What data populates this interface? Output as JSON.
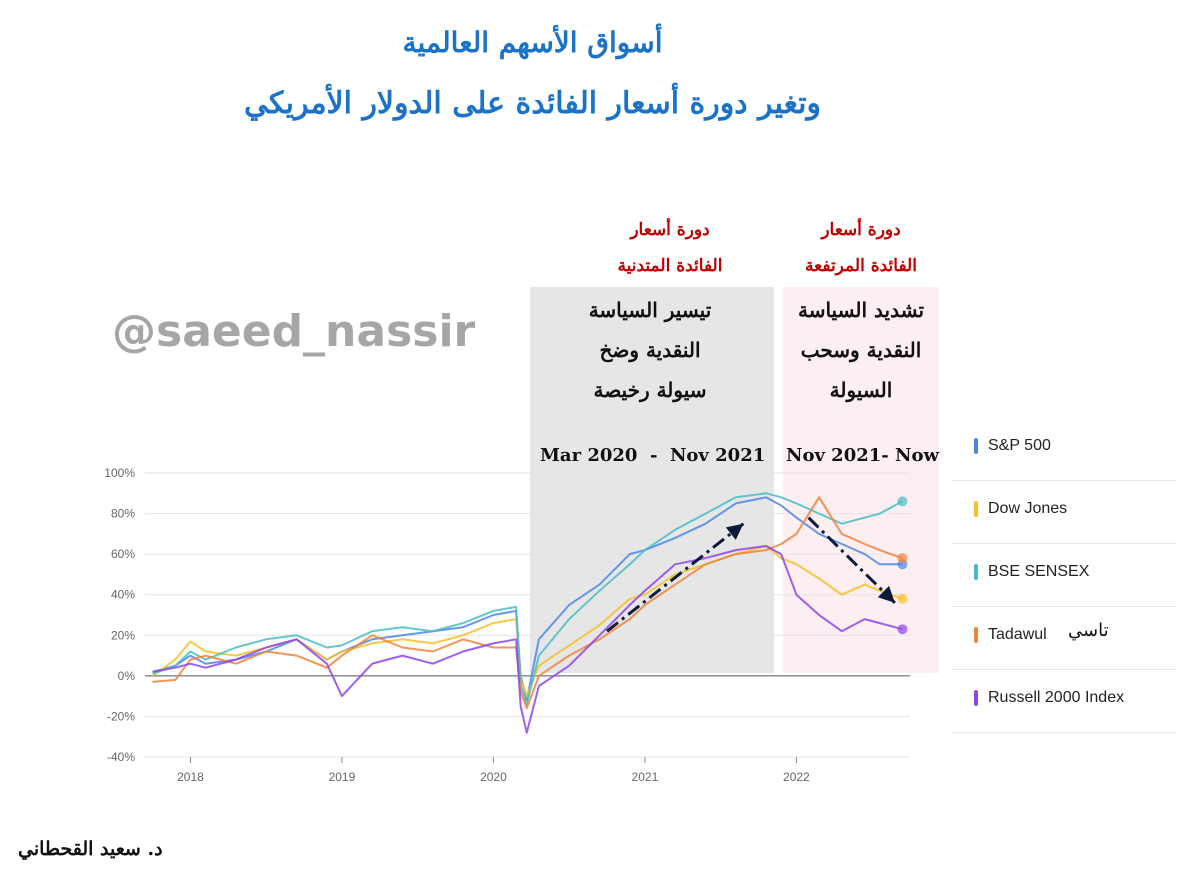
{
  "title_line1": "أسواق الأسهم العالمية",
  "title_line2": "وتغير دورة أسعار الفائدة على الدولار الأمريكي",
  "watermark": "@saeed_nassir",
  "author": "د. سعيد القحطاني",
  "cycles": {
    "low": {
      "title_line1": "دورة أسعار",
      "title_line2": "الفائدة المتدنية",
      "policy_line1": "تيسير السياسة",
      "policy_line2": "النقدية وضخ",
      "policy_line3": "سيولة رخيصة",
      "period": "Mar 2020  -  Nov 2021"
    },
    "high": {
      "title_line1": "دورة أسعار",
      "title_line2": "الفائدة المرتفعة",
      "policy_line1": "تشديد السياسة",
      "policy_line2": "النقدية وسحب",
      "policy_line3": "السيولة",
      "period": "Nov 2021- Now"
    }
  },
  "tadawul_note": "تاسي",
  "chart_data": {
    "type": "line",
    "x_unit": "year (decimal)",
    "xlim": [
      2017.7,
      2022.75
    ],
    "ylim": [
      -40,
      100
    ],
    "y_ticks": [
      "100%",
      "80%",
      "60%",
      "40%",
      "20%",
      "0%",
      "-20%",
      "-40%"
    ],
    "y_tick_values": [
      100,
      80,
      60,
      40,
      20,
      0,
      -20,
      -40
    ],
    "x_ticks": [
      "2018",
      "2019",
      "2020",
      "2021",
      "2022"
    ],
    "x_tick_values": [
      2018,
      2019,
      2020,
      2021,
      2022
    ],
    "grid": true,
    "legend_position": "right",
    "x": [
      2017.75,
      2017.9,
      2018.0,
      2018.1,
      2018.3,
      2018.5,
      2018.7,
      2018.9,
      2019.0,
      2019.2,
      2019.4,
      2019.6,
      2019.8,
      2020.0,
      2020.15,
      2020.18,
      2020.22,
      2020.3,
      2020.5,
      2020.7,
      2020.9,
      2021.0,
      2021.2,
      2021.4,
      2021.6,
      2021.8,
      2021.9,
      2022.0,
      2022.15,
      2022.3,
      2022.45,
      2022.55,
      2022.7
    ],
    "series": [
      {
        "name": "S&P 500",
        "color": "#4a86e8",
        "values": [
          2,
          5,
          10,
          6,
          8,
          12,
          18,
          8,
          12,
          18,
          20,
          22,
          24,
          30,
          32,
          0,
          -12,
          18,
          35,
          45,
          60,
          62,
          68,
          75,
          85,
          88,
          84,
          78,
          70,
          65,
          60,
          55,
          55
        ]
      },
      {
        "name": "Dow Jones",
        "color": "#f6c026",
        "values": [
          0,
          8,
          17,
          12,
          10,
          14,
          18,
          8,
          12,
          16,
          18,
          16,
          20,
          26,
          28,
          -2,
          -10,
          5,
          15,
          25,
          38,
          40,
          50,
          55,
          60,
          64,
          58,
          55,
          48,
          40,
          45,
          42,
          38
        ]
      },
      {
        "name": "BSE SENSEX",
        "color": "#46bdc6",
        "values": [
          1,
          5,
          12,
          8,
          14,
          18,
          20,
          14,
          15,
          22,
          24,
          22,
          26,
          32,
          34,
          -5,
          -14,
          10,
          28,
          42,
          55,
          62,
          72,
          80,
          88,
          90,
          88,
          85,
          80,
          75,
          78,
          80,
          86
        ]
      },
      {
        "name": "Tadawul",
        "color": "#f0833a",
        "values": [
          -3,
          -2,
          8,
          10,
          6,
          12,
          10,
          4,
          10,
          20,
          14,
          12,
          18,
          14,
          14,
          -8,
          -16,
          0,
          10,
          18,
          28,
          35,
          45,
          55,
          60,
          62,
          65,
          70,
          88,
          70,
          65,
          62,
          58
        ]
      },
      {
        "name": "Russell 2000 Index",
        "color": "#8e44ec",
        "values": [
          2,
          4,
          6,
          4,
          8,
          14,
          18,
          6,
          -10,
          6,
          10,
          6,
          12,
          16,
          18,
          -15,
          -28,
          -5,
          5,
          20,
          35,
          42,
          55,
          58,
          62,
          64,
          60,
          40,
          30,
          22,
          28,
          26,
          23
        ]
      }
    ],
    "annotations": [
      {
        "type": "arrow",
        "style": "dash-dot",
        "from": [
          2020.75,
          22
        ],
        "to": [
          2021.65,
          75
        ]
      },
      {
        "type": "arrow",
        "style": "dash-dot",
        "from": [
          2022.08,
          78
        ],
        "to": [
          2022.65,
          36
        ]
      }
    ]
  }
}
